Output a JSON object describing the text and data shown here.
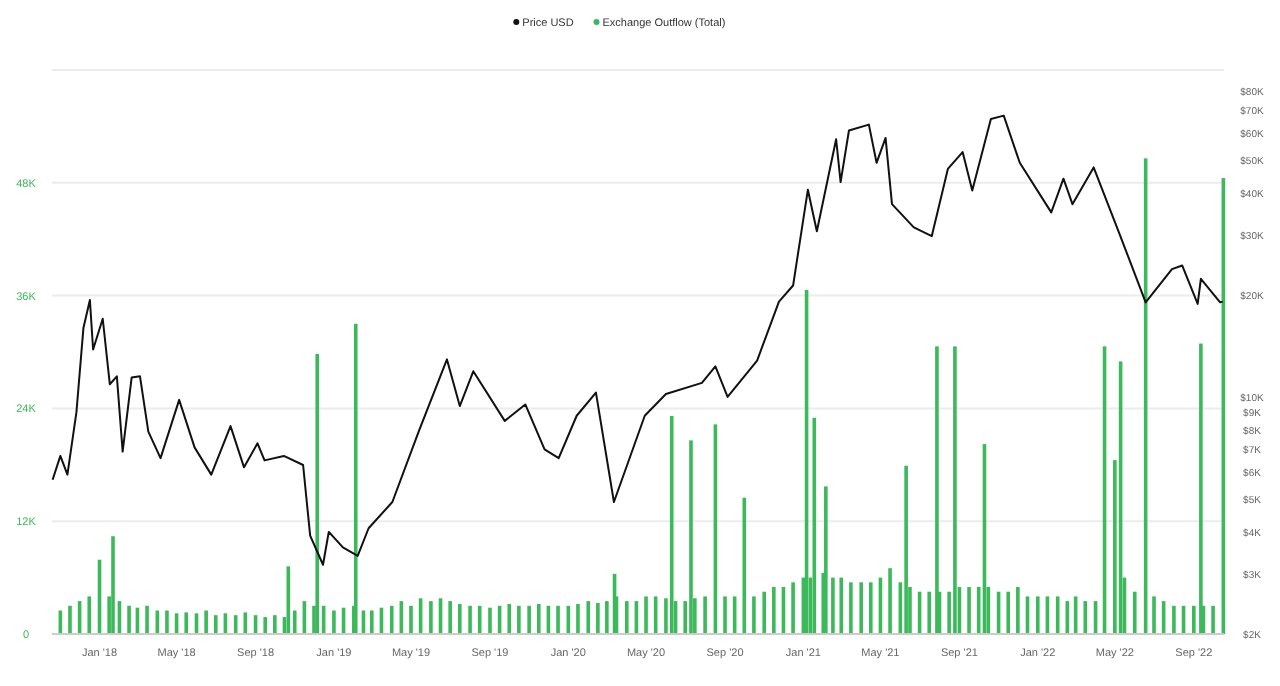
{
  "chart_data": {
    "type": "bar",
    "xlim": [
      "2017-10-19",
      "2022-10-18"
    ],
    "xticks": [
      {
        "value": "2018-01-01",
        "label": "Jan '18"
      },
      {
        "value": "2018-05-01",
        "label": "May '18"
      },
      {
        "value": "2018-09-01",
        "label": "Sep '18"
      },
      {
        "value": "2019-01-01",
        "label": "Jan '19"
      },
      {
        "value": "2019-05-01",
        "label": "May '19"
      },
      {
        "value": "2019-09-01",
        "label": "Sep '19"
      },
      {
        "value": "2020-01-01",
        "label": "Jan '20"
      },
      {
        "value": "2020-05-01",
        "label": "May '20"
      },
      {
        "value": "2020-09-01",
        "label": "Sep '20"
      },
      {
        "value": "2021-01-01",
        "label": "Jan '21"
      },
      {
        "value": "2021-05-01",
        "label": "May '21"
      },
      {
        "value": "2021-09-01",
        "label": "Sep '21"
      },
      {
        "value": "2022-01-01",
        "label": "Jan '22"
      },
      {
        "value": "2022-05-01",
        "label": "May '22"
      },
      {
        "value": "2022-09-01",
        "label": "Sep '22"
      }
    ],
    "ylim": [
      0,
      60000
    ],
    "yticks": [
      {
        "value": 0,
        "label": "0"
      },
      {
        "value": 12000,
        "label": "12K"
      },
      {
        "value": 24000,
        "label": "24K"
      },
      {
        "value": 36000,
        "label": "36K"
      },
      {
        "value": 48000,
        "label": "48K"
      }
    ],
    "y2lim": [
      2000,
      92000
    ],
    "y2ticks": [
      {
        "value": 2000,
        "label": "$2K"
      },
      {
        "value": 3000,
        "label": "$3K"
      },
      {
        "value": 4000,
        "label": "$4K"
      },
      {
        "value": 5000,
        "label": "$5K"
      },
      {
        "value": 6000,
        "label": "$6K"
      },
      {
        "value": 7000,
        "label": "$7K"
      },
      {
        "value": 8000,
        "label": "$8K"
      },
      {
        "value": 9000,
        "label": "$9K"
      },
      {
        "value": 10000,
        "label": "$10K"
      },
      {
        "value": 20000,
        "label": "$20K"
      },
      {
        "value": 30000,
        "label": "$30K"
      },
      {
        "value": 40000,
        "label": "$40K"
      },
      {
        "value": 50000,
        "label": "$50K"
      },
      {
        "value": 60000,
        "label": "$60K"
      },
      {
        "value": 70000,
        "label": "$70K"
      },
      {
        "value": 80000,
        "label": "$80K"
      }
    ],
    "log": "y2",
    "grid": "y",
    "legend": "top",
    "series": [
      {
        "name": "Price USD",
        "type": "line",
        "axis": "y2",
        "color": "#111111",
        "x": [
          "2017-10-20",
          "2017-11-01",
          "2017-11-12",
          "2017-11-26",
          "2017-12-07",
          "2017-12-17",
          "2017-12-22",
          "2018-01-06",
          "2018-01-17",
          "2018-01-28",
          "2018-02-06",
          "2018-02-20",
          "2018-03-05",
          "2018-03-18",
          "2018-04-06",
          "2018-05-05",
          "2018-05-29",
          "2018-06-24",
          "2018-07-24",
          "2018-08-14",
          "2018-09-04",
          "2018-09-15",
          "2018-10-15",
          "2018-11-14",
          "2018-11-25",
          "2018-12-15",
          "2018-12-24",
          "2019-01-15",
          "2019-02-07",
          "2019-02-24",
          "2019-04-02",
          "2019-05-14",
          "2019-06-26",
          "2019-07-16",
          "2019-08-06",
          "2019-09-24",
          "2019-10-26",
          "2019-11-25",
          "2019-12-17",
          "2020-01-14",
          "2020-02-13",
          "2020-03-12",
          "2020-04-29",
          "2020-06-01",
          "2020-07-27",
          "2020-08-17",
          "2020-09-05",
          "2020-10-21",
          "2020-11-24",
          "2020-12-16",
          "2021-01-08",
          "2021-01-22",
          "2021-02-21",
          "2021-02-28",
          "2021-03-13",
          "2021-04-13",
          "2021-04-25",
          "2021-05-09",
          "2021-05-19",
          "2021-06-22",
          "2021-07-20",
          "2021-08-14",
          "2021-09-06",
          "2021-09-21",
          "2021-10-20",
          "2021-11-09",
          "2021-12-04",
          "2022-01-22",
          "2022-02-10",
          "2022-02-24",
          "2022-03-29",
          "2022-05-09",
          "2022-06-18",
          "2022-07-29",
          "2022-08-14",
          "2022-09-07",
          "2022-09-12",
          "2022-10-12",
          "2022-10-16"
        ],
        "values": [
          5700,
          6700,
          5900,
          9000,
          16000,
          19300,
          13800,
          17000,
          10900,
          11500,
          6900,
          11400,
          11500,
          7900,
          6600,
          9800,
          7100,
          5900,
          8200,
          6200,
          7300,
          6500,
          6700,
          6300,
          3900,
          3200,
          4000,
          3600,
          3400,
          4100,
          4900,
          8000,
          12900,
          9400,
          11900,
          8500,
          9500,
          7000,
          6600,
          8800,
          10300,
          4900,
          8800,
          10200,
          11000,
          12300,
          10000,
          12800,
          19100,
          21300,
          40800,
          30800,
          57500,
          43000,
          61000,
          63500,
          49000,
          58000,
          37000,
          31600,
          29800,
          47000,
          52700,
          40600,
          66000,
          67500,
          49000,
          35000,
          44000,
          37000,
          47500,
          30000,
          19000,
          23800,
          24400,
          18800,
          22300,
          19000,
          19100
        ]
      },
      {
        "name": "Exchange Outflow (Total)",
        "color": "#3cb95a",
        "x": [
          "2017-11-01",
          "2017-11-16",
          "2017-12-01",
          "2017-12-16",
          "2018-01-01",
          "2018-01-16",
          "2018-01-22",
          "2018-02-01",
          "2018-02-16",
          "2018-03-01",
          "2018-03-16",
          "2018-04-01",
          "2018-04-16",
          "2018-05-01",
          "2018-05-16",
          "2018-06-01",
          "2018-06-16",
          "2018-07-01",
          "2018-07-16",
          "2018-08-01",
          "2018-08-16",
          "2018-09-01",
          "2018-09-16",
          "2018-10-01",
          "2018-10-16",
          "2018-10-22",
          "2018-11-01",
          "2018-11-16",
          "2018-12-01",
          "2018-12-06",
          "2018-12-16",
          "2019-01-01",
          "2019-01-16",
          "2019-02-01",
          "2019-02-04",
          "2019-02-16",
          "2019-03-01",
          "2019-03-16",
          "2019-04-01",
          "2019-04-16",
          "2019-05-01",
          "2019-05-16",
          "2019-06-01",
          "2019-06-16",
          "2019-07-01",
          "2019-07-16",
          "2019-08-01",
          "2019-08-16",
          "2019-09-01",
          "2019-09-16",
          "2019-10-01",
          "2019-10-16",
          "2019-11-01",
          "2019-11-16",
          "2019-12-01",
          "2019-12-16",
          "2020-01-01",
          "2020-01-16",
          "2020-02-01",
          "2020-02-16",
          "2020-03-01",
          "2020-03-13",
          "2020-03-16",
          "2020-04-01",
          "2020-04-16",
          "2020-05-01",
          "2020-05-16",
          "2020-06-01",
          "2020-06-10",
          "2020-06-16",
          "2020-07-01",
          "2020-07-10",
          "2020-07-16",
          "2020-08-01",
          "2020-08-17",
          "2020-09-01",
          "2020-09-16",
          "2020-10-01",
          "2020-10-16",
          "2020-11-01",
          "2020-11-16",
          "2020-12-01",
          "2020-12-16",
          "2021-01-01",
          "2021-01-06",
          "2021-01-12",
          "2021-01-18",
          "2021-02-01",
          "2021-02-05",
          "2021-02-16",
          "2021-03-01",
          "2021-03-16",
          "2021-04-01",
          "2021-04-16",
          "2021-05-01",
          "2021-05-16",
          "2021-06-01",
          "2021-06-10",
          "2021-06-16",
          "2021-07-01",
          "2021-07-16",
          "2021-07-28",
          "2021-08-01",
          "2021-08-16",
          "2021-08-25",
          "2021-09-01",
          "2021-09-16",
          "2021-10-01",
          "2021-10-10",
          "2021-10-16",
          "2021-11-01",
          "2021-11-16",
          "2021-12-01",
          "2021-12-16",
          "2022-01-01",
          "2022-01-16",
          "2022-02-01",
          "2022-02-16",
          "2022-03-01",
          "2022-03-16",
          "2022-04-01",
          "2022-04-15",
          "2022-05-01",
          "2022-05-10",
          "2022-05-16",
          "2022-06-01",
          "2022-06-18",
          "2022-07-01",
          "2022-07-16",
          "2022-08-01",
          "2022-08-16",
          "2022-09-01",
          "2022-09-12",
          "2022-09-16",
          "2022-10-01",
          "2022-10-17"
        ],
        "values": [
          2500,
          3000,
          3500,
          4000,
          7900,
          4000,
          10400,
          3500,
          3000,
          2800,
          3000,
          2500,
          2500,
          2200,
          2300,
          2200,
          2500,
          2000,
          2200,
          2000,
          2300,
          2000,
          1800,
          2000,
          1800,
          7200,
          2500,
          3500,
          3000,
          29800,
          3000,
          2500,
          2800,
          3000,
          33000,
          2500,
          2500,
          2800,
          3000,
          3500,
          3000,
          3800,
          3500,
          3800,
          3500,
          3200,
          3000,
          3000,
          2800,
          3000,
          3200,
          3000,
          3000,
          3200,
          3000,
          3000,
          3000,
          3200,
          3500,
          3300,
          3500,
          6400,
          4000,
          3500,
          3500,
          4000,
          4000,
          3800,
          23200,
          3500,
          3500,
          20600,
          3800,
          4000,
          22300,
          4000,
          4000,
          14500,
          4000,
          4500,
          5000,
          5000,
          5500,
          6000,
          36600,
          6000,
          23000,
          6500,
          15700,
          6000,
          6000,
          5500,
          5500,
          5500,
          6000,
          7000,
          5500,
          17900,
          5000,
          4500,
          4500,
          30600,
          4500,
          4500,
          30600,
          5000,
          5000,
          5000,
          20200,
          5000,
          4500,
          4500,
          5000,
          4000,
          4000,
          4000,
          4000,
          3500,
          4000,
          3500,
          3500,
          30600,
          18500,
          29000,
          6000,
          4500,
          50600,
          4000,
          3500,
          3000,
          3000,
          3000,
          30900,
          3000,
          3000,
          48500
        ]
      }
    ]
  }
}
